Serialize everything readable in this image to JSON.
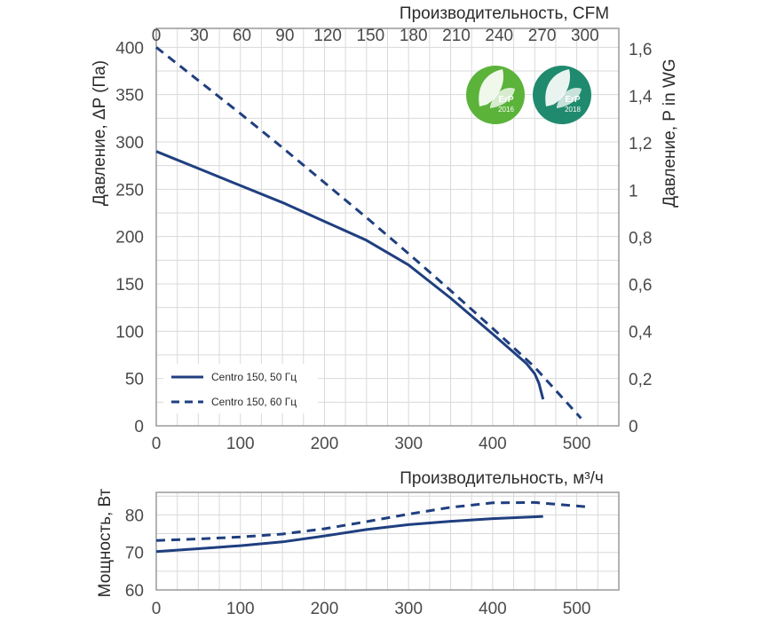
{
  "chart_data": [
    {
      "type": "line",
      "title": "",
      "xlabel": "",
      "ylabel": "Давление, ΔP (Па)",
      "x_top_label": "Производительность, CFM",
      "y_right_label": "Давление,  P in WG",
      "xlim": [
        0,
        550
      ],
      "ylim": [
        0,
        420
      ],
      "x_ticks": [
        "0",
        "100",
        "200",
        "300",
        "400",
        "500"
      ],
      "y_ticks": [
        "0",
        "50",
        "100",
        "150",
        "200",
        "250",
        "300",
        "350",
        "400"
      ],
      "x_top_ticks": [
        "0",
        "30",
        "60",
        "90",
        "120",
        "150",
        "180",
        "210",
        "240",
        "270",
        "300"
      ],
      "y_right_ticks": [
        "0",
        "0,2",
        "0,4",
        "0,6",
        "0,8",
        "1",
        "1,2",
        "1,4",
        "1,6"
      ],
      "grid": true,
      "legend_position": "bottom-left",
      "series": [
        {
          "name": "Centro 150, 50 Гц",
          "style": "solid",
          "color": "#1f3f7f",
          "points": [
            [
              0,
              290
            ],
            [
              50,
              272
            ],
            [
              100,
              254
            ],
            [
              150,
              236
            ],
            [
              200,
              216
            ],
            [
              250,
              196
            ],
            [
              300,
              170
            ],
            [
              350,
              135
            ],
            [
              400,
              97
            ],
            [
              440,
              66
            ],
            [
              450,
              55
            ],
            [
              455,
              45
            ],
            [
              460,
              28
            ]
          ]
        },
        {
          "name": "Centro 150, 60 Гц",
          "style": "dashed",
          "color": "#1f3f7f",
          "points": [
            [
              0,
              400
            ],
            [
              50,
              365
            ],
            [
              100,
              330
            ],
            [
              150,
              294
            ],
            [
              200,
              257
            ],
            [
              250,
              220
            ],
            [
              300,
              182
            ],
            [
              350,
              143
            ],
            [
              400,
              103
            ],
            [
              450,
              62
            ],
            [
              505,
              8
            ]
          ]
        }
      ]
    },
    {
      "type": "line",
      "title": "",
      "xlabel": "Производительность, м³/ч",
      "ylabel": "Мощность, Вт",
      "xlim": [
        0,
        550
      ],
      "ylim": [
        60,
        86
      ],
      "x_ticks": [
        "0",
        "100",
        "200",
        "300",
        "400",
        "500"
      ],
      "y_ticks": [
        "60",
        "70",
        "80"
      ],
      "grid": true,
      "series": [
        {
          "name": "Centro 150, 50 Гц",
          "style": "solid",
          "color": "#1f3f7f",
          "points": [
            [
              0,
              70.2
            ],
            [
              50,
              71
            ],
            [
              100,
              71.8
            ],
            [
              150,
              72.8
            ],
            [
              200,
              74.4
            ],
            [
              250,
              76.1
            ],
            [
              300,
              77.4
            ],
            [
              350,
              78.3
            ],
            [
              400,
              79
            ],
            [
              460,
              79.6
            ]
          ]
        },
        {
          "name": "Centro 150, 60 Гц",
          "style": "dashed",
          "color": "#1f3f7f",
          "points": [
            [
              0,
              73.2
            ],
            [
              50,
              73.6
            ],
            [
              100,
              74.1
            ],
            [
              150,
              74.9
            ],
            [
              200,
              76.3
            ],
            [
              250,
              78.2
            ],
            [
              300,
              80.2
            ],
            [
              350,
              82
            ],
            [
              400,
              83.2
            ],
            [
              450,
              83.3
            ],
            [
              510,
              82.2
            ]
          ]
        }
      ]
    }
  ],
  "badges": [
    {
      "text": "ErP",
      "year": "2016",
      "color": "#5bb33a"
    },
    {
      "text": "ErP",
      "year": "2018",
      "color": "#1f8a6e"
    }
  ]
}
